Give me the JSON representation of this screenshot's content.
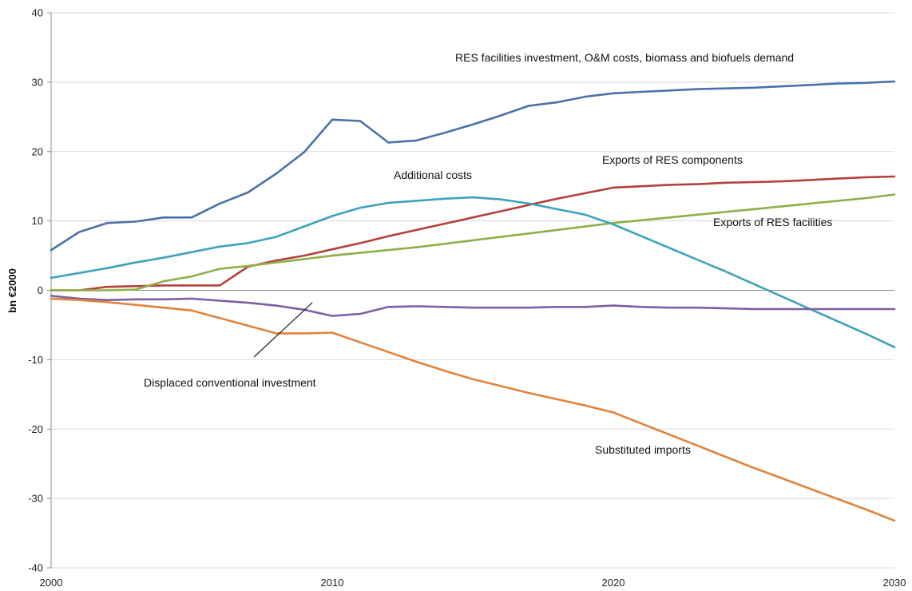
{
  "chart_data": {
    "type": "line",
    "ylabel": "bn €2000",
    "xlabel": "",
    "ylim": [
      -40,
      40
    ],
    "xlim": [
      2000,
      2030
    ],
    "y_ticks": [
      40,
      30,
      20,
      10,
      0,
      -10,
      -20,
      -30,
      -40
    ],
    "x_ticks": [
      2000,
      2010,
      2020,
      2030
    ],
    "grid": "horizontal",
    "x": [
      2000,
      2001,
      2002,
      2003,
      2004,
      2005,
      2006,
      2007,
      2008,
      2009,
      2010,
      2011,
      2012,
      2013,
      2014,
      2015,
      2016,
      2017,
      2018,
      2019,
      2020,
      2021,
      2022,
      2023,
      2024,
      2025,
      2026,
      2027,
      2028,
      2029,
      2030
    ],
    "series": [
      {
        "name": "RES facilities investment, O&M costs, biomass and biofuels demand",
        "color": "#4a72a8",
        "values": [
          5.8,
          8.4,
          9.7,
          9.9,
          10.5,
          10.5,
          12.5,
          14.1,
          16.8,
          19.9,
          24.6,
          24.4,
          21.3,
          21.6,
          22.7,
          23.9,
          25.2,
          26.6,
          27.1,
          27.9,
          28.4,
          28.6,
          28.8,
          29.0,
          29.1,
          29.2,
          29.4,
          29.6,
          29.8,
          29.9,
          30.1
        ]
      },
      {
        "name": "Exports of RES components",
        "color": "#b3413d",
        "values": [
          0.0,
          0.0,
          0.5,
          0.6,
          0.7,
          0.7,
          0.7,
          3.4,
          4.3,
          5.0,
          5.9,
          6.8,
          7.8,
          8.7,
          9.6,
          10.5,
          11.4,
          12.3,
          13.2,
          14.0,
          14.8,
          15.0,
          15.2,
          15.3,
          15.5,
          15.6,
          15.7,
          15.9,
          16.1,
          16.3,
          16.4
        ]
      },
      {
        "name": "Exports of RES facilities",
        "color": "#8faf48",
        "values": [
          0.0,
          0.0,
          0.0,
          0.1,
          1.3,
          2.0,
          3.1,
          3.5,
          4.0,
          4.5,
          5.0,
          5.4,
          5.8,
          6.2,
          6.7,
          7.2,
          7.7,
          8.2,
          8.7,
          9.2,
          9.7,
          10.1,
          10.5,
          10.9,
          11.3,
          11.7,
          12.1,
          12.5,
          12.9,
          13.3,
          13.8
        ]
      },
      {
        "name": "Additional costs",
        "color": "#3ea2bd",
        "values": [
          1.8,
          2.5,
          3.2,
          4.0,
          4.7,
          5.5,
          6.3,
          6.8,
          7.7,
          9.2,
          10.7,
          11.9,
          12.6,
          12.9,
          13.2,
          13.4,
          13.1,
          12.5,
          11.7,
          10.9,
          9.5,
          7.8,
          6.1,
          4.4,
          2.7,
          0.9,
          -0.9,
          -2.7,
          -4.5,
          -6.3,
          -8.2
        ]
      },
      {
        "name": "Displaced conventional investment",
        "color": "#7e5fa0",
        "values": [
          -0.8,
          -1.2,
          -1.4,
          -1.3,
          -1.3,
          -1.2,
          -1.5,
          -1.8,
          -2.2,
          -2.8,
          -3.7,
          -3.4,
          -2.4,
          -2.3,
          -2.4,
          -2.5,
          -2.5,
          -2.5,
          -2.4,
          -2.4,
          -2.2,
          -2.4,
          -2.5,
          -2.5,
          -2.6,
          -2.7,
          -2.7,
          -2.7,
          -2.7,
          -2.7,
          -2.7
        ]
      },
      {
        "name": "Substituted imports",
        "color": "#e0833a",
        "values": [
          -1.2,
          -1.4,
          -1.7,
          -2.1,
          -2.5,
          -2.9,
          -4.0,
          -5.1,
          -6.2,
          -6.2,
          -6.1,
          -7.5,
          -8.9,
          -10.3,
          -11.6,
          -12.8,
          -13.8,
          -14.8,
          -15.7,
          -16.6,
          -17.6,
          -19.2,
          -20.8,
          -22.4,
          -24.0,
          -25.6,
          -27.1,
          -28.6,
          -30.1,
          -31.6,
          -33.2
        ]
      }
    ],
    "annotations": [
      "RES facilities investment, O&M costs, biomass and biofuels demand",
      "Exports of RES components",
      "Additional costs",
      "Exports of RES facilities",
      "Displaced conventional investment",
      "Substituted imports"
    ]
  }
}
